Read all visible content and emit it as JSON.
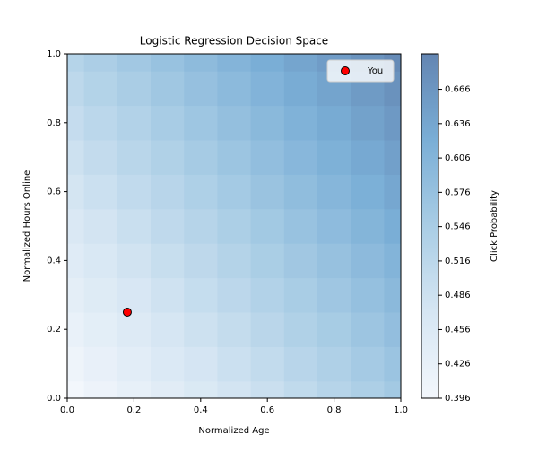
{
  "chart_data": {
    "type": "contour",
    "title": "Logistic Regression Decision Space",
    "xlabel": "Normalized Age",
    "ylabel": "Normalized Hours Online",
    "colorbar_label": "Click Probability",
    "x": [
      0,
      0.1,
      0.2,
      0.3,
      0.4,
      0.5,
      0.6,
      0.7,
      0.8,
      0.9,
      1
    ],
    "y": [
      0,
      0.1,
      0.2,
      0.3,
      0.4,
      0.5,
      0.6,
      0.7,
      0.8,
      0.9,
      1
    ],
    "z": [
      [
        0.396,
        0.412,
        0.428,
        0.444,
        0.46,
        0.476,
        0.492,
        0.508,
        0.524,
        0.54,
        0.556
      ],
      [
        0.409,
        0.425,
        0.441,
        0.457,
        0.473,
        0.489,
        0.505,
        0.521,
        0.537,
        0.553,
        0.569
      ],
      [
        0.422,
        0.438,
        0.454,
        0.47,
        0.486,
        0.502,
        0.518,
        0.534,
        0.55,
        0.566,
        0.582
      ],
      [
        0.435,
        0.451,
        0.467,
        0.483,
        0.499,
        0.515,
        0.531,
        0.547,
        0.563,
        0.579,
        0.595
      ],
      [
        0.448,
        0.464,
        0.48,
        0.496,
        0.512,
        0.528,
        0.544,
        0.56,
        0.576,
        0.592,
        0.608
      ],
      [
        0.461,
        0.477,
        0.493,
        0.509,
        0.525,
        0.541,
        0.557,
        0.573,
        0.589,
        0.605,
        0.621
      ],
      [
        0.474,
        0.49,
        0.506,
        0.522,
        0.538,
        0.554,
        0.57,
        0.586,
        0.602,
        0.618,
        0.634
      ],
      [
        0.487,
        0.503,
        0.519,
        0.535,
        0.551,
        0.567,
        0.583,
        0.599,
        0.615,
        0.631,
        0.647
      ],
      [
        0.5,
        0.516,
        0.532,
        0.548,
        0.564,
        0.58,
        0.596,
        0.612,
        0.628,
        0.644,
        0.66
      ],
      [
        0.513,
        0.529,
        0.545,
        0.561,
        0.577,
        0.593,
        0.609,
        0.625,
        0.641,
        0.657,
        0.673
      ],
      [
        0.526,
        0.542,
        0.558,
        0.574,
        0.59,
        0.606,
        0.622,
        0.638,
        0.654,
        0.67,
        0.686
      ]
    ],
    "colormap": [
      "#f3f7fc",
      "#d6e6f3",
      "#a9cde5",
      "#7aaed6",
      "#6385b2"
    ],
    "clim": [
      0.396,
      0.697
    ],
    "cticks": [
      0.396,
      0.426,
      0.456,
      0.486,
      0.516,
      0.546,
      0.576,
      0.606,
      0.636,
      0.666
    ],
    "xlim": [
      0,
      1
    ],
    "ylim": [
      0,
      1
    ],
    "xticks": [
      {
        "value": 0,
        "label": "0.0"
      },
      0.2,
      0.4,
      0.6,
      0.8,
      {
        "value": 1,
        "label": "1.0"
      }
    ],
    "yticks": [
      {
        "value": 0,
        "label": "0.0"
      },
      0.2,
      0.4,
      0.6,
      0.8,
      {
        "value": 1,
        "label": "1.0"
      }
    ],
    "series": [
      {
        "name": "You",
        "color": "#ff0000",
        "x": [
          0.18
        ],
        "y": [
          0.25
        ]
      }
    ],
    "legend": "upper right"
  }
}
